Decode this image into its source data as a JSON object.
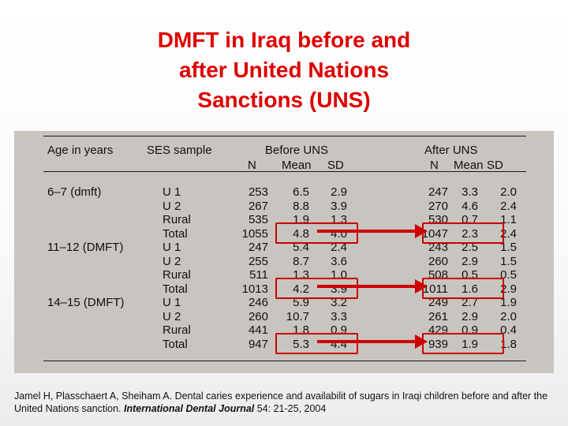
{
  "slide": {
    "title_lines": [
      "DMFT in Iraq before and",
      "after United Nations",
      "Sanctions (UNS)"
    ]
  },
  "table": {
    "headers": {
      "age": "Age in years",
      "ses": "SES sample",
      "before": "Before UNS",
      "after": "After UNS",
      "n": "N",
      "mean": "Mean",
      "sd": "SD"
    },
    "rows": [
      {
        "age": "6–7 (dmft)",
        "ses": "U 1",
        "bn": "253",
        "bm": "6.5",
        "bsd": "2.9",
        "an": "247",
        "am": "3.3",
        "asd": "2.0"
      },
      {
        "age": "",
        "ses": "U 2",
        "bn": "267",
        "bm": "8.8",
        "bsd": "3.9",
        "an": "270",
        "am": "4.6",
        "asd": "2.4"
      },
      {
        "age": "",
        "ses": "Rural",
        "bn": "535",
        "bm": "1.9",
        "bsd": "1.3",
        "an": "530",
        "am": "0.7",
        "asd": "1.1"
      },
      {
        "age": "",
        "ses": "Total",
        "bn": "1055",
        "bm": "4.8",
        "bsd": "4.0",
        "an": "1047",
        "am": "2.3",
        "asd": "2.4"
      },
      {
        "age": "11–12 (DMFT)",
        "ses": "U 1",
        "bn": "247",
        "bm": "5.4",
        "bsd": "2.4",
        "an": "243",
        "am": "2.5",
        "asd": "1.5"
      },
      {
        "age": "",
        "ses": "U 2",
        "bn": "255",
        "bm": "8.7",
        "bsd": "3.6",
        "an": "260",
        "am": "2.9",
        "asd": "1.5"
      },
      {
        "age": "",
        "ses": "Rural",
        "bn": "511",
        "bm": "1.3",
        "bsd": "1.0",
        "an": "508",
        "am": "0.5",
        "asd": "0.5"
      },
      {
        "age": "",
        "ses": "Total",
        "bn": "1013",
        "bm": "4.2",
        "bsd": "3.9",
        "an": "1011",
        "am": "1.6",
        "asd": "2.9"
      },
      {
        "age": "14–15 (DMFT)",
        "ses": "U 1",
        "bn": "246",
        "bm": "5.9",
        "bsd": "3.2",
        "an": "249",
        "am": "2.7",
        "asd": "1.9"
      },
      {
        "age": "",
        "ses": "U 2",
        "bn": "260",
        "bm": "10.7",
        "bsd": "3.3",
        "an": "261",
        "am": "2.9",
        "asd": "2.0"
      },
      {
        "age": "",
        "ses": "Rural",
        "bn": "441",
        "bm": "1.8",
        "bsd": "0.9",
        "an": "429",
        "am": "0.9",
        "asd": "0.4"
      },
      {
        "age": "",
        "ses": "Total",
        "bn": "947",
        "bm": "5.3",
        "bsd": "4.4",
        "an": "939",
        "am": "1.9",
        "asd": "1.8"
      }
    ]
  },
  "citation": {
    "text_1": "Jamel H, Plasschaert A, Sheiham A. Dental caries experience and availabilit of sugars in Iraqi children before and after the United Nations sanction. ",
    "journal": "International Dental Journal",
    "text_2": " 54: 21-25, 2004"
  },
  "colors": {
    "title": "#dd0000",
    "highlight": "#cc0000",
    "scan_background": "#c8c4c0"
  }
}
